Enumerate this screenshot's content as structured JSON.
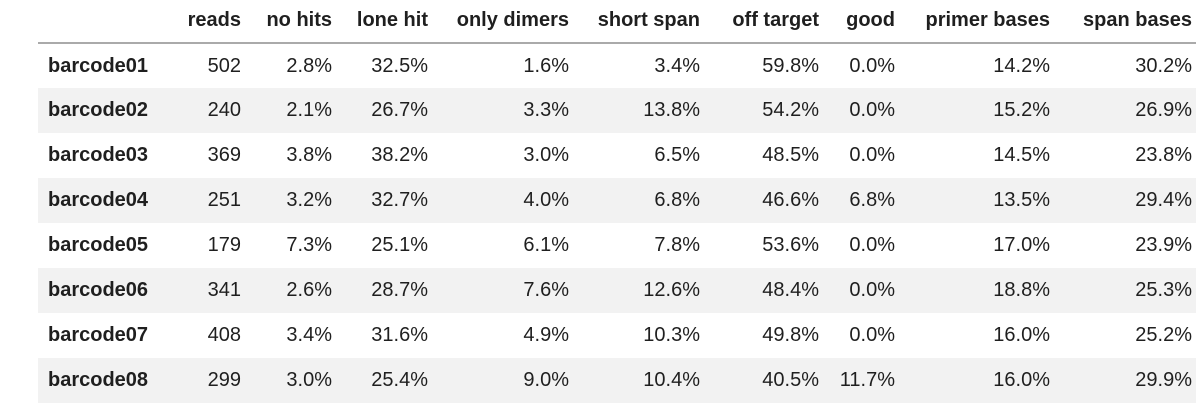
{
  "colors": {
    "background": "#ffffff",
    "stripe": "#f2f2f2",
    "text": "#1f1f1f",
    "header_rule": "#aaaaaa"
  },
  "chart_data": {
    "type": "table",
    "title": "",
    "columns": [
      "",
      "reads",
      "no hits",
      "lone hit",
      "only dimers",
      "short span",
      "off target",
      "good",
      "primer bases",
      "span bases"
    ],
    "rows": [
      {
        "label": "barcode01",
        "values": [
          "502",
          "2.8%",
          "32.5%",
          "1.6%",
          "3.4%",
          "59.8%",
          "0.0%",
          "14.2%",
          "30.2%"
        ]
      },
      {
        "label": "barcode02",
        "values": [
          "240",
          "2.1%",
          "26.7%",
          "3.3%",
          "13.8%",
          "54.2%",
          "0.0%",
          "15.2%",
          "26.9%"
        ]
      },
      {
        "label": "barcode03",
        "values": [
          "369",
          "3.8%",
          "38.2%",
          "3.0%",
          "6.5%",
          "48.5%",
          "0.0%",
          "14.5%",
          "23.8%"
        ]
      },
      {
        "label": "barcode04",
        "values": [
          "251",
          "3.2%",
          "32.7%",
          "4.0%",
          "6.8%",
          "46.6%",
          "6.8%",
          "13.5%",
          "29.4%"
        ]
      },
      {
        "label": "barcode05",
        "values": [
          "179",
          "7.3%",
          "25.1%",
          "6.1%",
          "7.8%",
          "53.6%",
          "0.0%",
          "17.0%",
          "23.9%"
        ]
      },
      {
        "label": "barcode06",
        "values": [
          "341",
          "2.6%",
          "28.7%",
          "7.6%",
          "12.6%",
          "48.4%",
          "0.0%",
          "18.8%",
          "25.3%"
        ]
      },
      {
        "label": "barcode07",
        "values": [
          "408",
          "3.4%",
          "31.6%",
          "4.9%",
          "10.3%",
          "49.8%",
          "0.0%",
          "16.0%",
          "25.2%"
        ]
      },
      {
        "label": "barcode08",
        "values": [
          "299",
          "3.0%",
          "25.4%",
          "9.0%",
          "10.4%",
          "40.5%",
          "11.7%",
          "16.0%",
          "29.9%"
        ]
      }
    ],
    "layout_hints": {
      "striped_rows": "even",
      "numeric_alignment": "right",
      "label_alignment": "left",
      "header_rule": true
    }
  }
}
